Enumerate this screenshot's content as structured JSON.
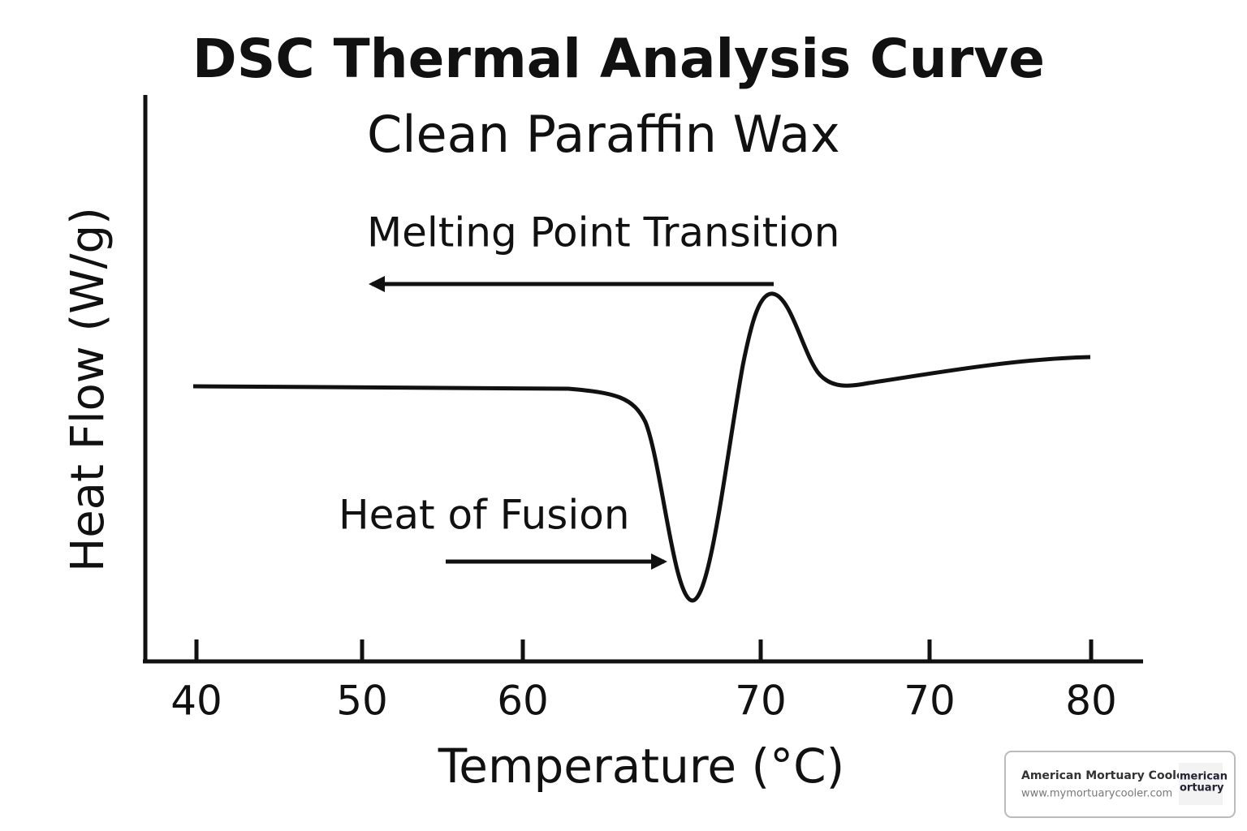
{
  "header": {
    "title": "DSC Thermal Analysis Curve",
    "subtitle": "Clean Paraffin Wax"
  },
  "axes": {
    "x_label": "Temperature (°C)",
    "y_label": "Heat Flow (W/g)",
    "x_tick_labels": [
      "40",
      "50",
      "60",
      "70",
      "70",
      "80"
    ]
  },
  "annotations": {
    "melting": "Melting Point Transition",
    "fusion": "Heat of Fusion"
  },
  "watermark": {
    "name": "American Mortuary Coolers",
    "url": "www.mymortuarycooler.com",
    "logo_line1": "merican",
    "logo_line2": "ortuary"
  }
}
